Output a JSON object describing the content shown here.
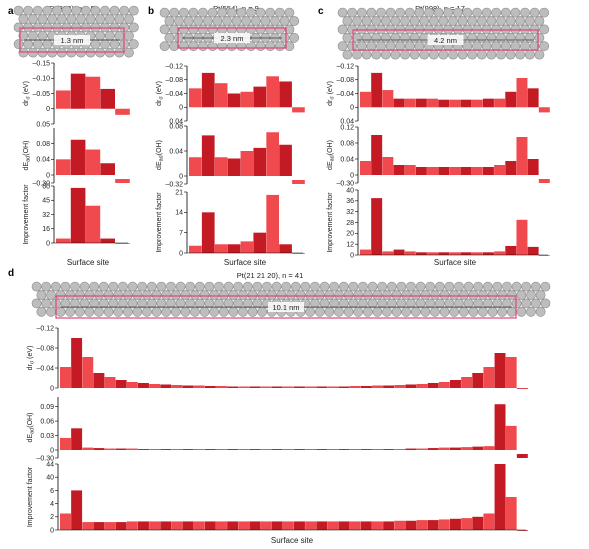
{
  "colors": {
    "light": "#f04a4f",
    "dark": "#c41a24",
    "atom_fill": "#bdbdbd",
    "atom_edge": "#8a8a8a",
    "box": "#e0457a"
  },
  "chart_data": [
    {
      "panel": "a",
      "type": "bar",
      "surface": {
        "name": "Pt(332)",
        "n_label": "n = 5",
        "width_label": "1.3 nm"
      },
      "xlabel": "Surface site",
      "subplots": [
        {
          "ylabel": "dr",
          "ylabel_sub": "σ",
          "ylabel_unit": " (eV)",
          "ylim": [
            -0.15,
            0.05
          ],
          "reversed": true,
          "ticks": [
            -0.15,
            -0.1,
            -0.05,
            0,
            0.05
          ],
          "tick_labels": [
            "–0.15",
            "–0.10",
            "–0.05",
            "0",
            "0.05"
          ],
          "values": [
            -0.06,
            -0.115,
            -0.105,
            -0.065,
            0.02
          ]
        },
        {
          "ylabel": "dE",
          "ylabel_sub": "ad",
          "ylabel_unit": "(OH)",
          "ylim": [
            -0.3,
            0.12
          ],
          "ticks": [
            0,
            0.04,
            0.08
          ],
          "tick_labels": [
            "0",
            "0.04",
            "0.08"
          ],
          "extra_tick": "–0.30",
          "values": [
            0.04,
            0.09,
            0.065,
            0.03,
            -0.3
          ]
        },
        {
          "ylabel": "Improvement factor",
          "ylim": [
            0,
            65
          ],
          "ticks": [
            0,
            16,
            32,
            45,
            60
          ],
          "tick_labels": [
            "0",
            "16",
            "32",
            "45",
            "60"
          ],
          "values": [
            5,
            58,
            40,
            5,
            0
          ]
        }
      ]
    },
    {
      "panel": "b",
      "type": "bar",
      "surface": {
        "name": "Pt(554)",
        "n_label": "n = 9",
        "width_label": "2.3 nm"
      },
      "xlabel": "Surface site",
      "subplots": [
        {
          "ylabel": "dr",
          "ylabel_sub": "σ",
          "ylabel_unit": " (eV)",
          "ylim": [
            -0.12,
            0.04
          ],
          "reversed": true,
          "ticks": [
            -0.12,
            -0.08,
            -0.04,
            0,
            0.04
          ],
          "tick_labels": [
            "–0.12",
            "–0.08",
            "–0.04",
            "0",
            "0.04"
          ],
          "values": [
            -0.055,
            -0.1,
            -0.07,
            -0.04,
            -0.045,
            -0.06,
            -0.09,
            -0.075,
            0.015
          ]
        },
        {
          "ylabel": "dE",
          "ylabel_sub": "ad",
          "ylabel_unit": "(OH)",
          "ylim": [
            -0.32,
            0.08
          ],
          "ticks": [
            0,
            0.04,
            0.08
          ],
          "tick_labels": [
            "0",
            "0.04",
            "0.08"
          ],
          "extra_tick": "–0.32",
          "values": [
            0.03,
            0.065,
            0.03,
            0.028,
            0.04,
            0.045,
            0.07,
            0.05,
            -0.32
          ]
        },
        {
          "ylabel": "Improvement factor",
          "ylim": [
            0,
            21
          ],
          "ticks": [
            0,
            7,
            14,
            21
          ],
          "tick_labels": [
            "0",
            "7",
            "14",
            "21"
          ],
          "values": [
            2.5,
            14,
            3,
            3,
            4,
            7,
            20,
            3,
            0
          ]
        }
      ]
    },
    {
      "panel": "c",
      "type": "bar",
      "surface": {
        "name": "Pt(998)",
        "n_label": "n = 17",
        "width_label": "4.2 nm"
      },
      "xlabel": "Surface site",
      "subplots": [
        {
          "ylabel": "dr",
          "ylabel_sub": "σ",
          "ylabel_unit": " (eV)",
          "ylim": [
            -0.12,
            0.04
          ],
          "reversed": true,
          "ticks": [
            -0.12,
            -0.08,
            -0.04,
            0,
            0.04
          ],
          "tick_labels": [
            "–0.12",
            "–0.08",
            "–0.04",
            "0",
            "0.04"
          ],
          "values": [
            -0.045,
            -0.1,
            -0.05,
            -0.025,
            -0.025,
            -0.025,
            -0.025,
            -0.022,
            -0.022,
            -0.022,
            -0.022,
            -0.025,
            -0.025,
            -0.045,
            -0.085,
            -0.055,
            0.015
          ]
        },
        {
          "ylabel": "dE",
          "ylabel_sub": "ad",
          "ylabel_unit": "(OH)",
          "ylim": [
            -0.3,
            0.12
          ],
          "ticks": [
            0,
            0.04,
            0.08,
            0.12
          ],
          "tick_labels": [
            "0",
            "0.04",
            "0.08",
            "0.12"
          ],
          "extra_tick": "–0.30",
          "values": [
            0.035,
            0.1,
            0.045,
            0.025,
            0.025,
            0.02,
            0.02,
            0.02,
            0.02,
            0.02,
            0.02,
            0.02,
            0.025,
            0.035,
            0.095,
            0.04,
            -0.3
          ]
        },
        {
          "ylabel": "Improvement factor",
          "ylim": [
            0,
            42
          ],
          "ticks": [
            0,
            12,
            20,
            28,
            32,
            36,
            40
          ],
          "tick_labels": [
            "0",
            "12",
            "20",
            "28",
            "32",
            "36",
            "40"
          ],
          "values": [
            6,
            37,
            4,
            6,
            4,
            3,
            3,
            3,
            3,
            3,
            3,
            3,
            4,
            10,
            29,
            9,
            0
          ]
        }
      ]
    },
    {
      "panel": "d",
      "type": "bar",
      "surface": {
        "name": "Pt(21 21 20)",
        "n_label": "n = 41",
        "width_label": "10.1 nm"
      },
      "xlabel": "Surface site",
      "subplots": [
        {
          "ylabel": "dr",
          "ylabel_sub": "σ",
          "ylabel_unit": " (eV)",
          "ylim": [
            -0.12,
            0.0
          ],
          "reversed": true,
          "ticks": [
            -0.12,
            -0.08,
            -0.04,
            0
          ],
          "tick_labels": [
            "–0.12",
            "–0.08",
            "–0.04",
            "0"
          ],
          "values": [
            -0.042,
            -0.1,
            -0.062,
            -0.03,
            -0.022,
            -0.016,
            -0.012,
            -0.01,
            -0.008,
            -0.007,
            -0.006,
            -0.005,
            -0.005,
            -0.004,
            -0.004,
            -0.003,
            -0.003,
            -0.003,
            -0.003,
            -0.003,
            -0.003,
            -0.003,
            -0.003,
            -0.003,
            -0.003,
            -0.003,
            -0.004,
            -0.004,
            -0.005,
            -0.005,
            -0.006,
            -0.007,
            -0.008,
            -0.01,
            -0.012,
            -0.016,
            -0.022,
            -0.03,
            -0.042,
            -0.07,
            -0.062,
            0.004
          ]
        },
        {
          "ylabel": "dE",
          "ylabel_sub": "ad",
          "ylabel_unit": "(OH)",
          "ylim": [
            -0.3,
            0.11
          ],
          "ticks": [
            0,
            0.03,
            0.06,
            0.09
          ],
          "tick_labels": [
            "0",
            "0.03",
            "0.06",
            "0.09"
          ],
          "extra_tick": "–0.30",
          "values": [
            0.025,
            0.045,
            0.005,
            0.004,
            0.003,
            0.003,
            0.003,
            0.002,
            0.002,
            0.002,
            0.002,
            0.002,
            0.002,
            0.002,
            0.002,
            0.002,
            0.002,
            0.002,
            0.002,
            0.002,
            0.002,
            0.002,
            0.002,
            0.002,
            0.002,
            0.002,
            0.002,
            0.002,
            0.002,
            0.002,
            0.002,
            0.003,
            0.003,
            0.004,
            0.005,
            0.005,
            0.006,
            0.007,
            0.008,
            0.095,
            0.05,
            -0.3
          ]
        },
        {
          "ylabel": "Improvement factor",
          "ylim": [
            0,
            44
          ],
          "ticks": [
            0,
            2,
            4,
            6,
            40,
            44
          ],
          "tick_labels": [
            "0",
            "2",
            "4",
            "6",
            "40",
            "44"
          ],
          "values": [
            2.5,
            6,
            1.2,
            1.2,
            1.2,
            1.2,
            1.3,
            1.3,
            1.3,
            1.3,
            1.3,
            1.3,
            1.3,
            1.3,
            1.3,
            1.3,
            1.3,
            1.3,
            1.3,
            1.3,
            1.3,
            1.3,
            1.3,
            1.3,
            1.3,
            1.3,
            1.3,
            1.3,
            1.3,
            1.3,
            1.4,
            1.4,
            1.5,
            1.5,
            1.6,
            1.7,
            1.8,
            2.0,
            2.5,
            44,
            5,
            0
          ]
        }
      ]
    }
  ]
}
